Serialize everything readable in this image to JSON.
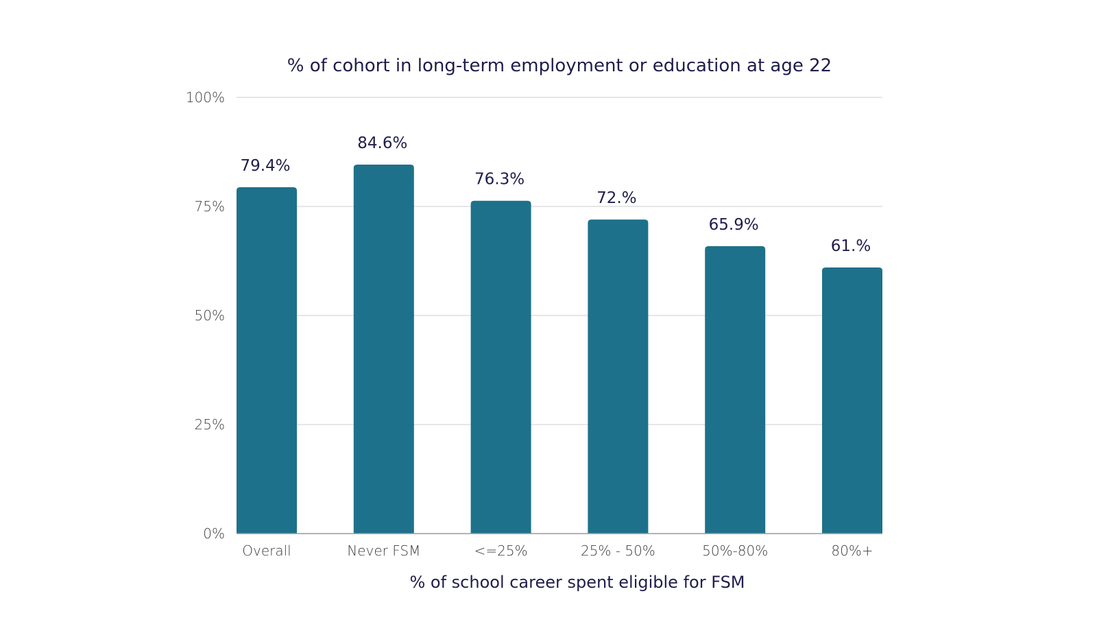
{
  "chart_data": {
    "type": "bar",
    "title": "% of cohort in long-term employment or education at age 22",
    "xlabel": "% of school career spent eligible for FSM",
    "ylabel": "",
    "categories": [
      "Overall",
      "Never FSM",
      "<=25%",
      "25% - 50%",
      "50%-80%",
      "80%+"
    ],
    "values": [
      79.4,
      84.6,
      76.3,
      72.0,
      65.9,
      61.0
    ],
    "value_labels": [
      "79.4%",
      "84.6%",
      "76.3%",
      "72.%",
      "65.9%",
      "61.%"
    ],
    "ylim": [
      0,
      100
    ],
    "yticks": [
      0,
      25,
      50,
      75,
      100
    ],
    "ytick_labels": [
      "0%",
      "25%",
      "50%",
      "75%",
      "100%"
    ],
    "grid": true,
    "legend": "none",
    "colors": {
      "bar": "#1e718a",
      "grid": "#d6d6d6",
      "axis": "#9a9a9a",
      "title_text": "#1f1d4a"
    }
  }
}
